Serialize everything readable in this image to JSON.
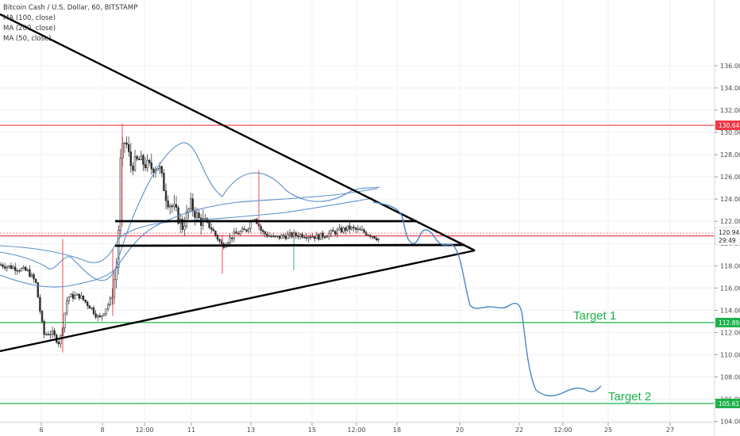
{
  "chart_data": {
    "type": "candlestick",
    "title": "Bitcoin Cash / U.S. Dollar, 60, BITSTAMP",
    "legend": [
      {
        "label": "MA (100, close)"
      },
      {
        "label": "MA (200, close)"
      },
      {
        "label": "MA (50, close)"
      }
    ],
    "y_ticks": [
      "104.00",
      "106.00",
      "108.00",
      "110.00",
      "112.00",
      "114.00",
      "116.00",
      "118.00",
      "120.00",
      "122.00",
      "124.00",
      "126.00",
      "128.00",
      "130.00",
      "132.00",
      "134.00",
      "136.00"
    ],
    "ylim": [
      103.6,
      136.7
    ],
    "x_ticks": [
      "6",
      "8",
      "12:00",
      "11",
      "13",
      "15",
      "12:00",
      "18",
      "20",
      "22",
      "12:00",
      "25",
      "27"
    ],
    "horizontal_levels": [
      {
        "value": 130.64,
        "label": "130.64",
        "color": "#f23645"
      },
      {
        "value": 120.69,
        "label": "120.69",
        "color": "#f23645"
      },
      {
        "value": 112.89,
        "label": "112.89",
        "color": "#1db14a"
      },
      {
        "value": 105.61,
        "label": "105.61",
        "color": "#1db14a"
      }
    ],
    "price_badge": {
      "value": 120.94,
      "label": "120.94",
      "countdown": "29:49"
    },
    "targets": [
      {
        "label": "Target 1",
        "value": 112.89
      },
      {
        "label": "Target 2",
        "value": 105.61
      }
    ],
    "colors": {
      "up": "#2f2f2f",
      "down": "#2f2f2f",
      "ma": "#5b8fc9",
      "projection": "#4a86c8",
      "trendline": "#000000"
    }
  }
}
